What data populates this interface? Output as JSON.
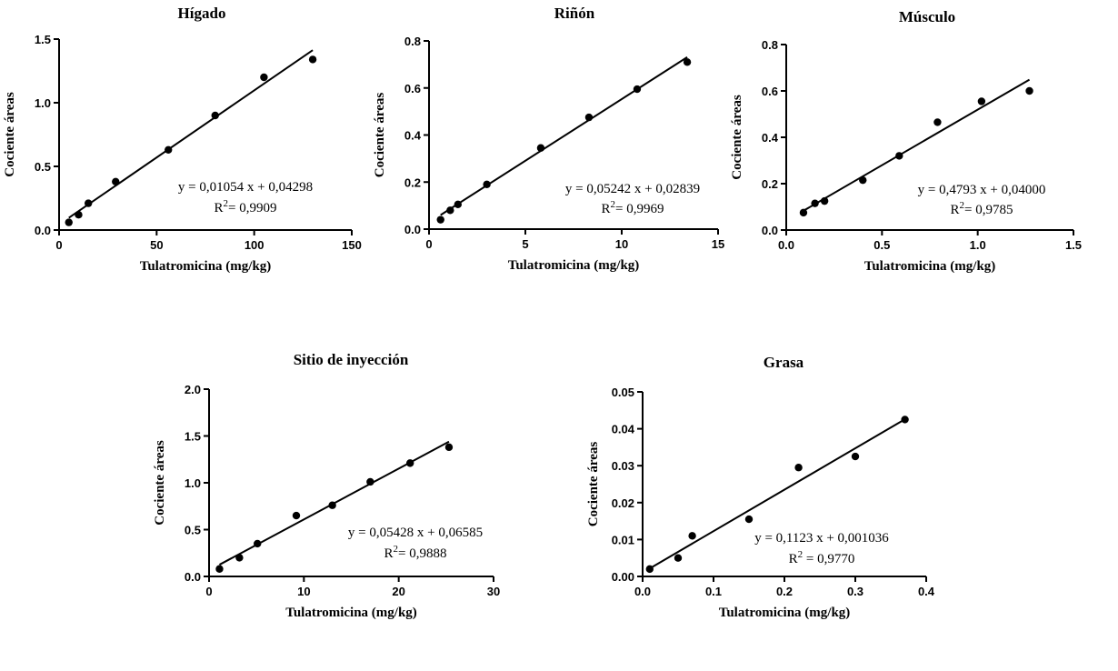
{
  "chart_data": [
    {
      "type": "scatter",
      "title": "Hígado",
      "xlabel": "Tulatromicina (mg/kg)",
      "ylabel": "Cociente áreas",
      "xlim": [
        0,
        150
      ],
      "ylim": [
        0,
        1.5
      ],
      "xticks": [
        "0",
        "50",
        "100",
        "150"
      ],
      "yticks": [
        "0.0",
        "0.5",
        "1.0",
        "1.5"
      ],
      "points": [
        {
          "x": 5,
          "y": 0.06
        },
        {
          "x": 10,
          "y": 0.12
        },
        {
          "x": 15,
          "y": 0.21
        },
        {
          "x": 29,
          "y": 0.38
        },
        {
          "x": 56,
          "y": 0.63
        },
        {
          "x": 80,
          "y": 0.9
        },
        {
          "x": 105,
          "y": 1.2
        },
        {
          "x": 130,
          "y": 1.34
        }
      ],
      "fit": {
        "slope": 0.01054,
        "intercept": 0.04298,
        "x_range": [
          5,
          130
        ]
      },
      "equation": "y = 0,01054 x + 0,04298",
      "r2_prefix": "R",
      "r2_sup": "2",
      "r2_value": "= 0,9909",
      "grid": false,
      "legend": "none"
    },
    {
      "type": "scatter",
      "title": "Riñón",
      "xlabel": "Tulatromicina (mg/kg)",
      "ylabel": "Cociente áreas",
      "xlim": [
        0,
        15
      ],
      "ylim": [
        0,
        0.8
      ],
      "xticks": [
        "0",
        "5",
        "10",
        "15"
      ],
      "yticks": [
        "0.0",
        "0.2",
        "0.4",
        "0.6",
        "0.8"
      ],
      "points": [
        {
          "x": 0.6,
          "y": 0.04
        },
        {
          "x": 1.1,
          "y": 0.08
        },
        {
          "x": 1.5,
          "y": 0.105
        },
        {
          "x": 3.0,
          "y": 0.19
        },
        {
          "x": 5.8,
          "y": 0.345
        },
        {
          "x": 8.3,
          "y": 0.475
        },
        {
          "x": 10.8,
          "y": 0.595
        },
        {
          "x": 13.4,
          "y": 0.71
        }
      ],
      "fit": {
        "slope": 0.05242,
        "intercept": 0.02839,
        "x_range": [
          0.6,
          13.4
        ]
      },
      "equation": "y = 0,05242 x + 0,02839",
      "r2_prefix": "R",
      "r2_sup": "2",
      "r2_value": "= 0,9969",
      "grid": false,
      "legend": "none"
    },
    {
      "type": "scatter",
      "title": "Músculo",
      "xlabel": "Tulatromicina (mg/kg)",
      "ylabel": "Cociente áreas",
      "xlim": [
        0,
        1.5
      ],
      "ylim": [
        0,
        0.8
      ],
      "xticks": [
        "0.0",
        "0.5",
        "1.0",
        "1.5"
      ],
      "yticks": [
        "0.0",
        "0.2",
        "0.4",
        "0.6",
        "0.8"
      ],
      "points": [
        {
          "x": 0.09,
          "y": 0.075
        },
        {
          "x": 0.15,
          "y": 0.115
        },
        {
          "x": 0.2,
          "y": 0.125
        },
        {
          "x": 0.4,
          "y": 0.215
        },
        {
          "x": 0.59,
          "y": 0.32
        },
        {
          "x": 0.79,
          "y": 0.465
        },
        {
          "x": 1.02,
          "y": 0.555
        },
        {
          "x": 1.27,
          "y": 0.6
        }
      ],
      "fit": {
        "slope": 0.4793,
        "intercept": 0.04,
        "x_range": [
          0.09,
          1.27
        ]
      },
      "equation": "y = 0,4793 x + 0,04000",
      "r2_prefix": "R",
      "r2_sup": "2",
      "r2_value": "= 0,9785",
      "grid": false,
      "legend": "none"
    },
    {
      "type": "scatter",
      "title": "Sitio de inyección",
      "xlabel": "Tulatromicina (mg/kg)",
      "ylabel": "Cociente áreas",
      "xlim": [
        0,
        30
      ],
      "ylim": [
        0,
        2.0
      ],
      "xticks": [
        "0",
        "10",
        "20",
        "30"
      ],
      "yticks": [
        "0.0",
        "0.5",
        "1.0",
        "1.5",
        "2.0"
      ],
      "points": [
        {
          "x": 1.1,
          "y": 0.08
        },
        {
          "x": 3.2,
          "y": 0.2
        },
        {
          "x": 5.1,
          "y": 0.35
        },
        {
          "x": 9.2,
          "y": 0.65
        },
        {
          "x": 13.0,
          "y": 0.76
        },
        {
          "x": 17.0,
          "y": 1.01
        },
        {
          "x": 21.2,
          "y": 1.21
        },
        {
          "x": 25.3,
          "y": 1.38
        }
      ],
      "fit": {
        "slope": 0.05428,
        "intercept": 0.06585,
        "x_range": [
          1.1,
          25.3
        ]
      },
      "equation": "y = 0,05428 x + 0,06585",
      "r2_prefix": "R",
      "r2_sup": "2",
      "r2_value": "= 0,9888",
      "grid": false,
      "legend": "none"
    },
    {
      "type": "scatter",
      "title": "Grasa",
      "xlabel": "Tulatromicina (mg/kg)",
      "ylabel": "Cociente áreas",
      "xlim": [
        0,
        0.4
      ],
      "ylim": [
        0,
        0.05
      ],
      "xticks": [
        "0.0",
        "0.1",
        "0.2",
        "0.3",
        "0.4"
      ],
      "yticks": [
        "0.00",
        "0.01",
        "0.02",
        "0.03",
        "0.04",
        "0.05"
      ],
      "points": [
        {
          "x": 0.01,
          "y": 0.002
        },
        {
          "x": 0.05,
          "y": 0.005
        },
        {
          "x": 0.07,
          "y": 0.011
        },
        {
          "x": 0.15,
          "y": 0.0155
        },
        {
          "x": 0.22,
          "y": 0.0295
        },
        {
          "x": 0.3,
          "y": 0.0325
        },
        {
          "x": 0.37,
          "y": 0.0425
        }
      ],
      "fit": {
        "slope": 0.1123,
        "intercept": 0.001036,
        "x_range": [
          0.01,
          0.37
        ]
      },
      "equation": "y = 0,1123 x + 0,001036",
      "r2_prefix": "R",
      "r2_sup": "2",
      "r2_value": " = 0,9770",
      "grid": false,
      "legend": "none"
    }
  ]
}
